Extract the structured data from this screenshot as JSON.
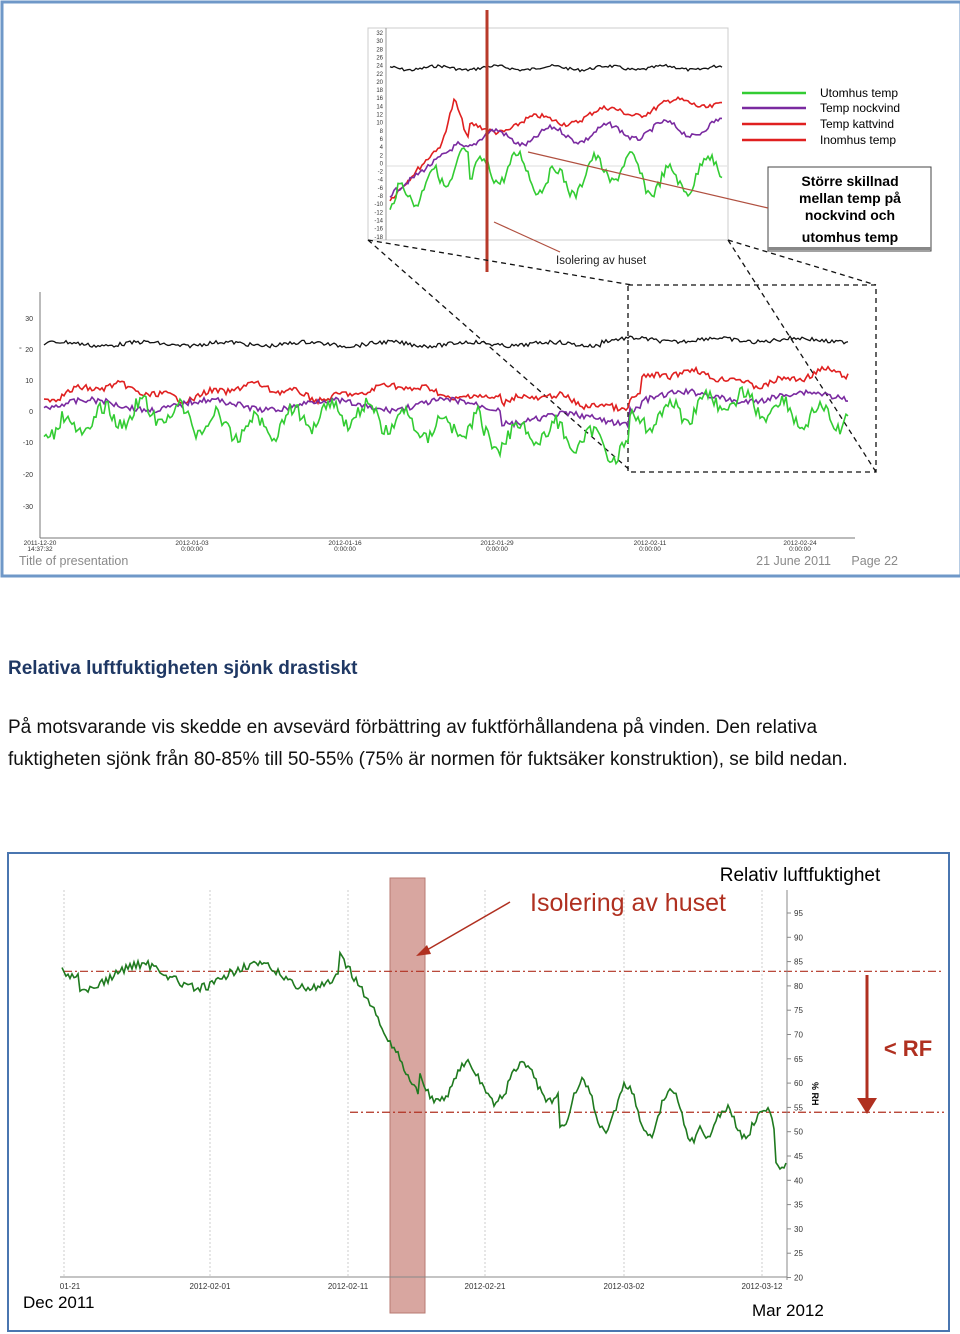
{
  "slide": {
    "footer_title": "Title of presentation",
    "footer_date": "21 June 2011",
    "footer_page": "Page 22"
  },
  "inset_chart": {
    "legend": [
      "Utomhus temp",
      "Temp nockvind",
      "Temp kattvind",
      "Inomhus temp"
    ],
    "callout_lines": [
      "Större skillnad",
      "mellan temp på",
      "nockvind och",
      "utomhus temp"
    ],
    "marker_label": "Isolering av huset",
    "ytick_labels": [
      "32",
      "30",
      "28",
      "26",
      "24",
      "22",
      "20",
      "18",
      "16",
      "14",
      "12",
      "10",
      "8",
      "6",
      "4",
      "2",
      "0",
      "-2",
      "-4",
      "-6",
      "-8",
      "-10",
      "-12",
      "-14",
      "-16",
      "-18"
    ]
  },
  "main_chart": {
    "yticks": [
      "30",
      "20",
      "10",
      "0",
      "-10",
      "-20",
      "-30"
    ],
    "x_dates": [
      "2011-12-20",
      "2012-01-03",
      "2012-01-16",
      "2012-01-29",
      "2012-02-11",
      "2012-02-24"
    ],
    "x_times": [
      "14:37:32",
      "0:00:00",
      "0:00:00",
      "0:00:00",
      "0:00:00",
      "0:00:00"
    ],
    "series_colors": {
      "black": "#111111",
      "red": "#e02020",
      "purple": "#7a2aa0",
      "green": "#33cc33"
    }
  },
  "text": {
    "heading": "Relativa luftfuktigheten sjönk drastiskt",
    "paragraph_line1": "På motsvarande vis skedde en avsevärd förbättring av fuktförhållandena på vinden. Den relativa",
    "paragraph_line2": "fuktigheten sjönk från 80-85% till 50-55% (75% är normen för fuktsäker konstruktion), se bild nedan."
  },
  "rh_chart": {
    "title": "Relativ luftfuktighet",
    "annotation": "Isolering av huset",
    "arrow_label": "< RF",
    "yaxis_label": "% RH",
    "yticks": [
      "95",
      "90",
      "85",
      "80",
      "75",
      "70",
      "65",
      "60",
      "55",
      "50",
      "45",
      "40",
      "35",
      "30",
      "25",
      "20"
    ],
    "xticks": [
      "01-21",
      "2012-02-01",
      "2012-02-11",
      "2012-02-21",
      "2012-03-02",
      "2012-03-12"
    ],
    "start_label": "Dec 2011",
    "end_label": "Mar 2012",
    "reference_lines": [
      83,
      54
    ],
    "line_color": "#1f7a1f"
  }
}
